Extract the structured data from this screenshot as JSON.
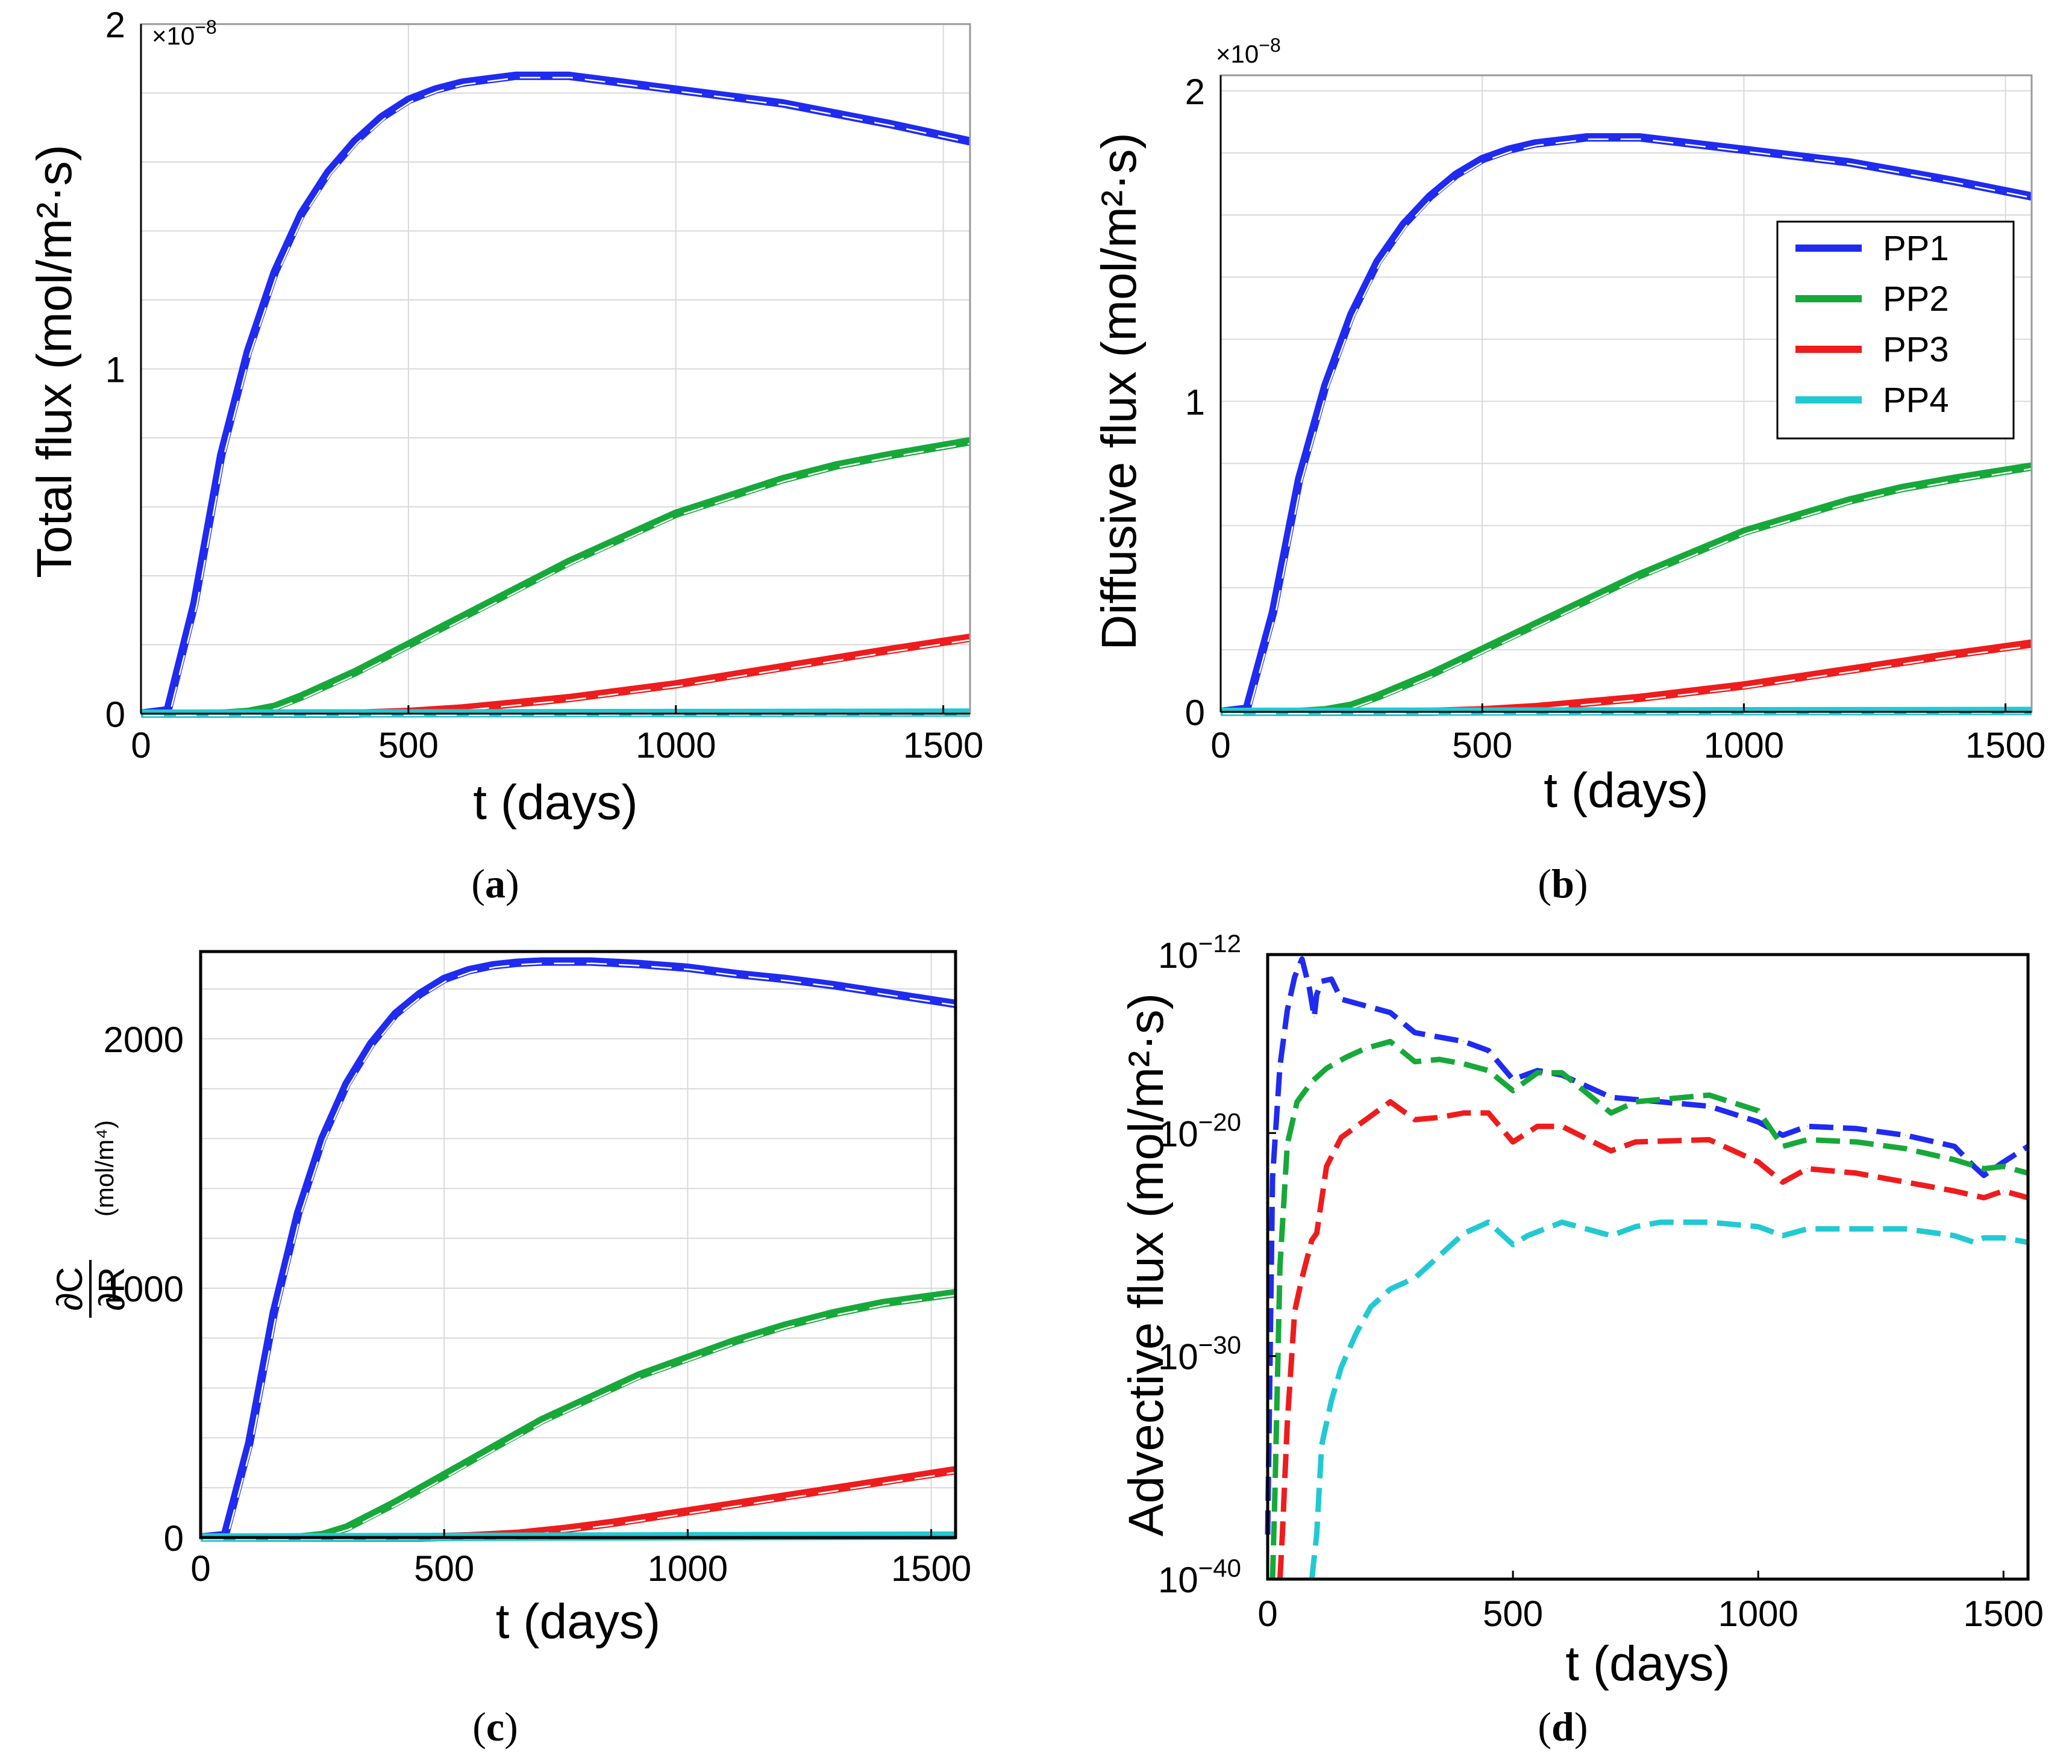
{
  "colors": {
    "PP1": "#1f2bf0",
    "PP2": "#17a83a",
    "PP3": "#ee1c1c",
    "PP4": "#22c9d2"
  },
  "legend": [
    "PP1",
    "PP2",
    "PP3",
    "PP4"
  ],
  "chart_data": [
    {
      "id": "a",
      "type": "line",
      "caption": "a",
      "xlabel": "t (days)",
      "ylabel": "Total flux (mol/m²·s)",
      "multiplier": "×10",
      "multiplier_exp": "−8",
      "xlim": [
        0,
        1550
      ],
      "ylim": [
        0,
        2.0
      ],
      "xticks": [
        0,
        500,
        1000,
        1500
      ],
      "yticks": [
        0,
        1,
        2
      ],
      "ytick_labels": [
        "0",
        "1",
        "2"
      ],
      "series": [
        {
          "name": "PP1",
          "x": [
            0,
            50,
            100,
            150,
            200,
            250,
            300,
            350,
            400,
            450,
            500,
            550,
            600,
            650,
            700,
            800,
            900,
            1000,
            1100,
            1200,
            1300,
            1400,
            1550
          ],
          "values": [
            0,
            0.01,
            0.32,
            0.75,
            1.05,
            1.28,
            1.45,
            1.57,
            1.66,
            1.73,
            1.78,
            1.81,
            1.83,
            1.84,
            1.85,
            1.85,
            1.83,
            1.81,
            1.79,
            1.77,
            1.74,
            1.71,
            1.66
          ]
        },
        {
          "name": "PP2",
          "x": [
            0,
            150,
            200,
            250,
            300,
            400,
            500,
            600,
            700,
            800,
            900,
            1000,
            1100,
            1200,
            1300,
            1400,
            1550
          ],
          "values": [
            0,
            0,
            0.005,
            0.02,
            0.05,
            0.12,
            0.2,
            0.28,
            0.36,
            0.44,
            0.51,
            0.58,
            0.63,
            0.68,
            0.72,
            0.75,
            0.79
          ]
        },
        {
          "name": "PP3",
          "x": [
            0,
            400,
            500,
            600,
            700,
            800,
            900,
            1000,
            1100,
            1200,
            1300,
            1400,
            1550
          ],
          "values": [
            0,
            0,
            0.005,
            0.015,
            0.03,
            0.045,
            0.065,
            0.085,
            0.11,
            0.135,
            0.16,
            0.185,
            0.22
          ]
        },
        {
          "name": "PP4",
          "x": [
            0,
            1550
          ],
          "values": [
            0,
            0.003
          ]
        }
      ]
    },
    {
      "id": "b",
      "type": "line",
      "caption": "b",
      "xlabel": "t (days)",
      "ylabel": "Diffusive flux (mol/m²·s)",
      "multiplier": "×10",
      "multiplier_exp": "−8",
      "xlim": [
        0,
        1550
      ],
      "ylim": [
        0,
        2.05
      ],
      "xticks": [
        0,
        500,
        1000,
        1500
      ],
      "yticks": [
        0,
        1,
        2
      ],
      "ytick_labels": [
        "0",
        "1",
        "2"
      ],
      "legend_position": "top-right",
      "series": [
        {
          "name": "PP1",
          "x": [
            0,
            50,
            100,
            150,
            200,
            250,
            300,
            350,
            400,
            450,
            500,
            550,
            600,
            650,
            700,
            800,
            900,
            1000,
            1100,
            1200,
            1300,
            1400,
            1550
          ],
          "values": [
            0,
            0.01,
            0.32,
            0.75,
            1.05,
            1.28,
            1.45,
            1.57,
            1.66,
            1.73,
            1.78,
            1.81,
            1.83,
            1.84,
            1.85,
            1.85,
            1.83,
            1.81,
            1.79,
            1.77,
            1.74,
            1.71,
            1.66
          ]
        },
        {
          "name": "PP2",
          "x": [
            0,
            150,
            200,
            250,
            300,
            400,
            500,
            600,
            700,
            800,
            900,
            1000,
            1100,
            1200,
            1300,
            1400,
            1550
          ],
          "values": [
            0,
            0,
            0.005,
            0.02,
            0.05,
            0.12,
            0.2,
            0.28,
            0.36,
            0.44,
            0.51,
            0.58,
            0.63,
            0.68,
            0.72,
            0.75,
            0.79
          ]
        },
        {
          "name": "PP3",
          "x": [
            0,
            400,
            500,
            600,
            700,
            800,
            900,
            1000,
            1100,
            1200,
            1300,
            1400,
            1550
          ],
          "values": [
            0,
            0,
            0.005,
            0.015,
            0.03,
            0.045,
            0.065,
            0.085,
            0.11,
            0.135,
            0.16,
            0.185,
            0.22
          ]
        },
        {
          "name": "PP4",
          "x": [
            0,
            1550
          ],
          "values": [
            0,
            0.003
          ]
        }
      ]
    },
    {
      "id": "c",
      "type": "line",
      "caption": "c",
      "xlabel": "t (days)",
      "ylabel": "∂C/∂R (mol/m⁴)",
      "ylabel_num": "∂C",
      "ylabel_den": "∂R",
      "ylabel_unit": "(mol/m⁴)",
      "xlim": [
        0,
        1550
      ],
      "ylim": [
        0,
        2350
      ],
      "xticks": [
        0,
        500,
        1000,
        1500
      ],
      "yticks": [
        0,
        1000,
        2000
      ],
      "ytick_labels": [
        "0",
        "1000",
        "2000"
      ],
      "series": [
        {
          "name": "PP1",
          "x": [
            0,
            50,
            100,
            150,
            200,
            250,
            300,
            350,
            400,
            450,
            500,
            550,
            600,
            650,
            700,
            800,
            900,
            1000,
            1100,
            1200,
            1300,
            1400,
            1550
          ],
          "values": [
            0,
            10,
            380,
            900,
            1300,
            1600,
            1820,
            1980,
            2100,
            2180,
            2240,
            2275,
            2295,
            2305,
            2310,
            2310,
            2300,
            2285,
            2260,
            2240,
            2215,
            2185,
            2140
          ]
        },
        {
          "name": "PP2",
          "x": [
            0,
            200,
            250,
            300,
            400,
            500,
            600,
            700,
            800,
            900,
            1000,
            1100,
            1200,
            1300,
            1400,
            1550
          ],
          "values": [
            0,
            0,
            10,
            40,
            140,
            250,
            360,
            470,
            560,
            650,
            720,
            790,
            850,
            900,
            940,
            980
          ]
        },
        {
          "name": "PP3",
          "x": [
            0,
            450,
            550,
            650,
            750,
            850,
            950,
            1050,
            1150,
            1250,
            1350,
            1450,
            1550
          ],
          "values": [
            0,
            0,
            5,
            15,
            35,
            60,
            90,
            120,
            150,
            180,
            210,
            240,
            270
          ]
        },
        {
          "name": "PP4",
          "x": [
            0,
            1550
          ],
          "values": [
            0,
            8
          ]
        }
      ]
    },
    {
      "id": "d",
      "type": "line",
      "caption": "d",
      "xlabel": "t (days)",
      "ylabel": "Advective flux (mol/m²·s)",
      "yscale": "log",
      "xlim": [
        0,
        1550
      ],
      "ylim": [
        -40,
        -12
      ],
      "xticks": [
        0,
        500,
        1000,
        1500
      ],
      "yticks": [
        -40,
        -30,
        -20,
        -12
      ],
      "ytick_base": "10",
      "ytick_exps": [
        "−40",
        "−30",
        "−20",
        "−12"
      ],
      "series": [
        {
          "name": "PP1",
          "x": [
            0,
            10,
            25,
            40,
            55,
            70,
            85,
            95,
            100,
            110,
            130,
            150,
            200,
            250,
            300,
            400,
            450,
            500,
            550,
            600,
            700,
            750,
            900,
            1000,
            1050,
            1100,
            1200,
            1300,
            1400,
            1440,
            1460,
            1500,
            1550
          ],
          "values": [
            -38,
            -22,
            -17,
            -14.5,
            -13,
            -12.2,
            -13.5,
            -14.8,
            -13.8,
            -13.2,
            -13.1,
            -14,
            -14.3,
            -14.6,
            -15.5,
            -15.9,
            -16.3,
            -17.6,
            -17.2,
            -17.4,
            -18.4,
            -18.5,
            -18.8,
            -19.5,
            -20.1,
            -19.7,
            -19.8,
            -20.1,
            -20.6,
            -21.5,
            -21.9,
            -21.3,
            -20.6
          ]
        },
        {
          "name": "PP2",
          "x": [
            10,
            15,
            25,
            40,
            60,
            90,
            120,
            160,
            200,
            250,
            300,
            350,
            400,
            450,
            500,
            550,
            600,
            700,
            750,
            900,
            1000,
            1050,
            1100,
            1200,
            1300,
            1400,
            1460,
            1500,
            1550
          ],
          "values": [
            -40,
            -36,
            -26,
            -20.5,
            -18.6,
            -17.7,
            -17.1,
            -16.6,
            -16.2,
            -15.9,
            -16.8,
            -16.7,
            -16.9,
            -17.2,
            -18.1,
            -17.3,
            -17.3,
            -19.1,
            -18.6,
            -18.3,
            -19.0,
            -20.6,
            -20.3,
            -20.4,
            -20.7,
            -21.2,
            -21.6,
            -21.5,
            -21.8
          ]
        },
        {
          "name": "PP3",
          "x": [
            25,
            30,
            40,
            55,
            70,
            90,
            100,
            120,
            150,
            200,
            250,
            300,
            350,
            400,
            450,
            500,
            550,
            600,
            700,
            750,
            900,
            1000,
            1050,
            1100,
            1200,
            1300,
            1400,
            1460,
            1500,
            1550
          ],
          "values": [
            -40,
            -38,
            -33,
            -28,
            -26.5,
            -24.8,
            -24.5,
            -21.5,
            -20.2,
            -19.4,
            -18.6,
            -19.4,
            -19.3,
            -19.1,
            -19.1,
            -20.4,
            -19.7,
            -19.7,
            -20.8,
            -20.4,
            -20.3,
            -21.3,
            -22.2,
            -21.6,
            -21.8,
            -22.2,
            -22.6,
            -22.9,
            -22.6,
            -22.9
          ]
        },
        {
          "name": "PP4",
          "x": [
            90,
            100,
            110,
            130,
            150,
            180,
            210,
            250,
            300,
            350,
            400,
            450,
            500,
            530,
            600,
            700,
            750,
            800,
            900,
            1000,
            1050,
            1100,
            1200,
            1300,
            1400,
            1440,
            1460,
            1500,
            1550
          ],
          "values": [
            -40,
            -38,
            -34,
            -32,
            -30.5,
            -29,
            -27.8,
            -27,
            -26.5,
            -25.5,
            -24.5,
            -24,
            -25,
            -24.6,
            -24,
            -24.6,
            -24.2,
            -24,
            -24.0,
            -24.2,
            -24.6,
            -24.3,
            -24.3,
            -24.3,
            -24.6,
            -24.9,
            -24.7,
            -24.7,
            -24.9
          ]
        }
      ]
    }
  ]
}
